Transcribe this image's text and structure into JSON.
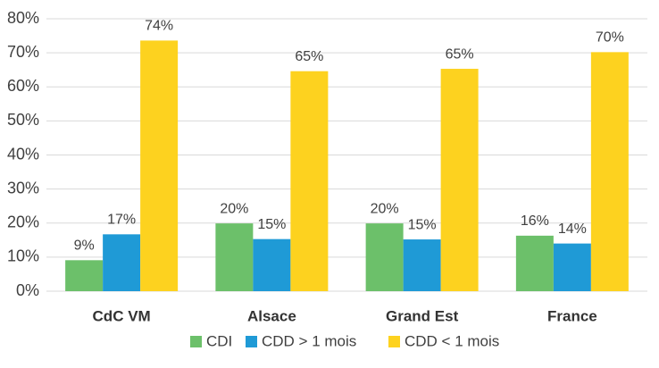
{
  "chart_data": {
    "type": "bar",
    "categories": [
      "CdC VM",
      "Alsace",
      "Grand Est",
      "France"
    ],
    "series": [
      {
        "name": "CDI",
        "color": "#6cc06a",
        "values": [
          9.1,
          19.9,
          19.9,
          16.3
        ],
        "value_labels": [
          "9%",
          "20%",
          "20%",
          "16%"
        ]
      },
      {
        "name": "CDD > 1 mois",
        "color": "#1f9ad6",
        "values": [
          16.7,
          15.3,
          15.2,
          14
        ],
        "value_labels": [
          "17%",
          "15%",
          "15%",
          "14%"
        ]
      },
      {
        "name": "CDD < 1 mois",
        "color": "#fdd21f",
        "values": [
          73.6,
          64.6,
          65.3,
          70.2
        ],
        "value_labels": [
          "74%",
          "65%",
          "65%",
          "70%"
        ]
      }
    ],
    "ylim": [
      0,
      80
    ],
    "yticks": [
      {
        "value": 0,
        "label": "0%"
      },
      {
        "value": 10,
        "label": "10%"
      },
      {
        "value": 20,
        "label": "20%"
      },
      {
        "value": 30,
        "label": "30%"
      },
      {
        "value": 40,
        "label": "40%"
      },
      {
        "value": 50,
        "label": "50%"
      },
      {
        "value": 60,
        "label": "60%"
      },
      {
        "value": 70,
        "label": "70%"
      },
      {
        "value": 80,
        "label": "80%"
      }
    ],
    "grid": true,
    "legend": "bottom"
  }
}
